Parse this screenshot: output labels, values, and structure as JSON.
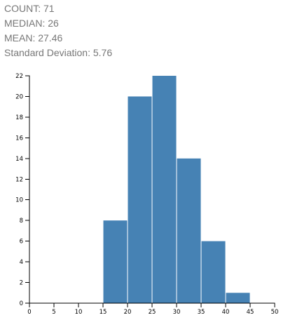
{
  "stats": [
    {
      "label": "COUNT:",
      "value": "71"
    },
    {
      "label": "MEDIAN:",
      "value": "26"
    },
    {
      "label": "MEAN:",
      "value": "27.46"
    },
    {
      "label": "Standard Deviation:",
      "value": "5.76"
    }
  ],
  "chart_data": {
    "type": "bar",
    "bins": [
      {
        "x0": 15,
        "x1": 20,
        "count": 8
      },
      {
        "x0": 20,
        "x1": 25,
        "count": 20
      },
      {
        "x0": 25,
        "x1": 30,
        "count": 22
      },
      {
        "x0": 30,
        "x1": 35,
        "count": 14
      },
      {
        "x0": 35,
        "x1": 40,
        "count": 6
      },
      {
        "x0": 40,
        "x1": 45,
        "count": 1
      }
    ],
    "xlim": [
      0,
      50
    ],
    "ylim": [
      0,
      22
    ],
    "xticks": [
      0,
      5,
      10,
      15,
      20,
      25,
      30,
      35,
      40,
      45,
      50
    ],
    "yticks": [
      0,
      2,
      4,
      6,
      8,
      10,
      12,
      14,
      16,
      18,
      20,
      22
    ],
    "bar_color": "#4682b4",
    "grid": false
  }
}
